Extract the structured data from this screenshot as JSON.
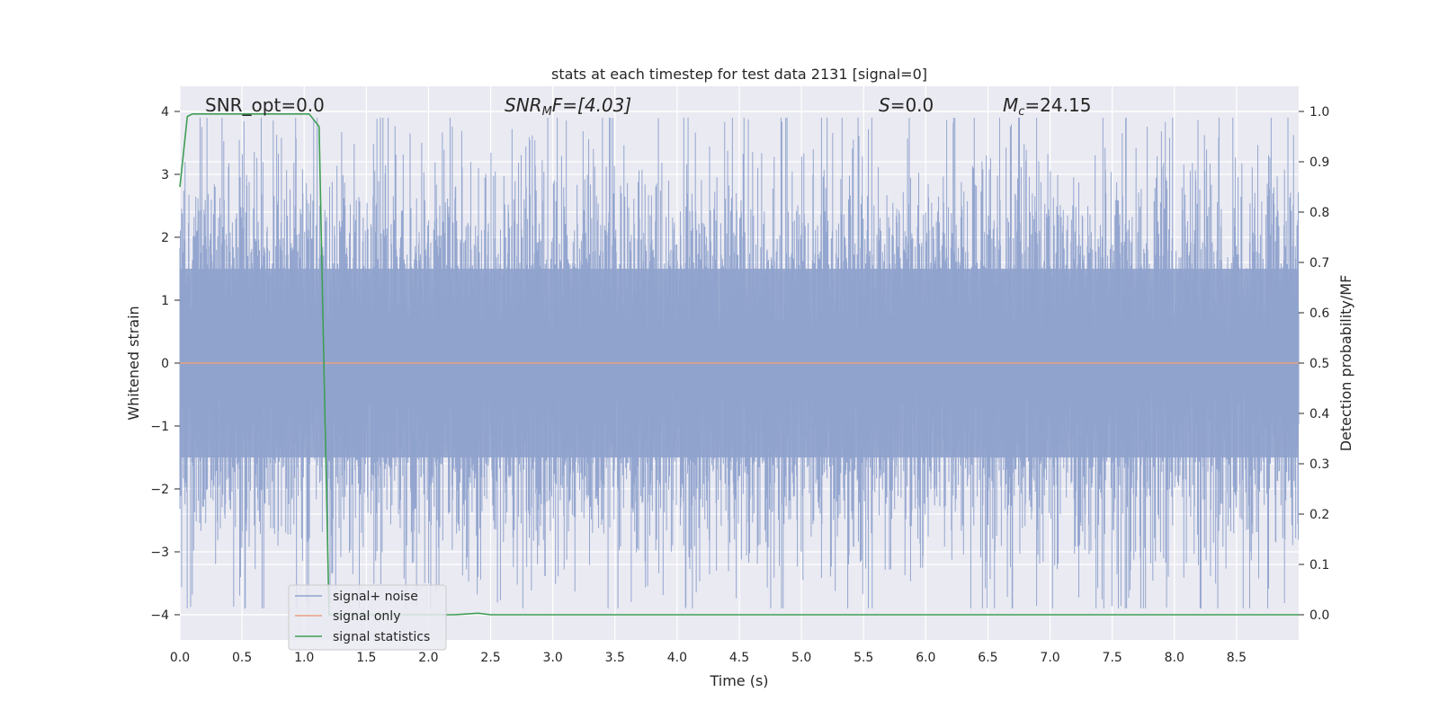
{
  "chart_data": {
    "type": "line",
    "title": "stats at each timestep for test data 2131 [signal=0]",
    "xlabel": "Time (s)",
    "ylabel_left": "Whitened strain",
    "ylabel_right": "Detection probability/MF",
    "xlim": [
      0,
      9.0
    ],
    "ylim_left": [
      -4.4,
      4.4
    ],
    "ylim_right": [
      -0.05,
      1.05
    ],
    "xticks": [
      "0.0",
      "0.5",
      "1.0",
      "1.5",
      "2.0",
      "2.5",
      "3.0",
      "3.5",
      "4.0",
      "4.5",
      "5.0",
      "5.5",
      "6.0",
      "6.5",
      "7.0",
      "7.5",
      "8.0",
      "8.5"
    ],
    "yticks_left": [
      "4",
      "3",
      "2",
      "1",
      "0",
      "−1",
      "−2",
      "−3",
      "−4"
    ],
    "yticks_right": [
      "1.0",
      "0.9",
      "0.8",
      "0.7",
      "0.6",
      "0.5",
      "0.4",
      "0.3",
      "0.2",
      "0.1",
      "0.0"
    ],
    "grid": true,
    "legend_position": "lower-left",
    "annotations": {
      "snr_opt": "SNR_opt=0.0",
      "snr_mf_base": "SNR",
      "snr_mf_sub": "M",
      "snr_mf_rest": "F=[4.03]",
      "s_italic": "S",
      "s_rest": "=0.0",
      "mc_base": "M",
      "mc_sub": "c",
      "mc_rest": "=24.15"
    },
    "series": [
      {
        "name": "signal+ noise",
        "axis": "left",
        "color": "#8fa2cc",
        "description_values": "noise band approx ±1.5 dense, peaks to ±3.9",
        "envelope": {
          "dense_amplitude": 1.5,
          "max_amplitude": 3.9
        }
      },
      {
        "name": "signal only",
        "axis": "left",
        "color": "#e8a17e",
        "values_constant": 0
      },
      {
        "name": "signal statistics",
        "axis": "right",
        "color": "#3f9e55",
        "x": [
          0.0,
          0.06,
          0.1,
          0.2,
          0.4,
          0.6,
          0.8,
          1.0,
          1.04,
          1.12,
          1.15,
          1.2,
          1.3,
          1.5,
          2.0,
          2.2,
          2.4,
          2.5,
          3.0,
          5.0,
          7.0,
          9.0
        ],
        "y": [
          0.85,
          0.99,
          0.995,
          0.995,
          0.995,
          0.995,
          0.995,
          0.995,
          0.995,
          0.97,
          0.6,
          0.0,
          0.0,
          0.0,
          0.0,
          0.0,
          0.003,
          0.0,
          0.0,
          0.0,
          0.0,
          0.0
        ]
      }
    ]
  }
}
